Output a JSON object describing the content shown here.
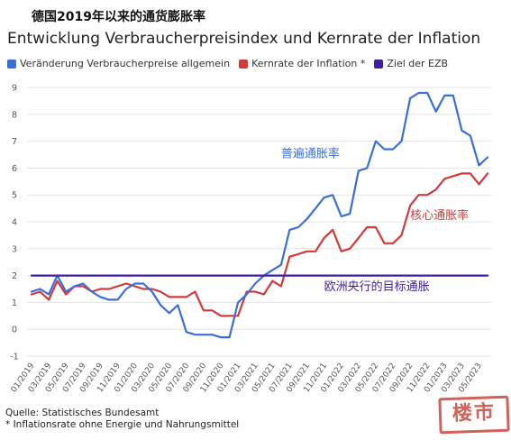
{
  "overlay_title": "德国2019年以来的通货膨胀率",
  "chart_data": {
    "type": "line",
    "title": "Entwicklung Verbraucherpreisindex und Kernrate der Inflation",
    "xlabel": "",
    "ylabel": "",
    "ylim": [
      -1,
      9
    ],
    "yticks": [
      9,
      8,
      7,
      6,
      5,
      4,
      3,
      2,
      1,
      0,
      -1
    ],
    "grid": true,
    "legend_position": "top-left",
    "x": [
      "01/2019",
      "02/2019",
      "03/2019",
      "04/2019",
      "05/2019",
      "06/2019",
      "07/2019",
      "08/2019",
      "09/2019",
      "10/2019",
      "11/2019",
      "12/2019",
      "01/2020",
      "02/2020",
      "03/2020",
      "04/2020",
      "05/2020",
      "06/2020",
      "07/2020",
      "08/2020",
      "09/2020",
      "10/2020",
      "11/2020",
      "12/2020",
      "01/2021",
      "02/2021",
      "03/2021",
      "04/2021",
      "05/2021",
      "06/2021",
      "07/2021",
      "08/2021",
      "09/2021",
      "10/2021",
      "11/2021",
      "12/2021",
      "01/2022",
      "02/2022",
      "03/2022",
      "04/2022",
      "05/2022",
      "06/2022",
      "07/2022",
      "08/2022",
      "09/2022",
      "10/2022",
      "11/2022",
      "12/2022",
      "01/2023",
      "02/2023",
      "03/2023",
      "04/2023",
      "05/2023",
      "06/2023"
    ],
    "x_tick_labels": [
      "01/2019",
      "03/2019",
      "05/2019",
      "07/2019",
      "09/2019",
      "11/2019",
      "01/2020",
      "03/2020",
      "05/2020",
      "07/2020",
      "09/2020",
      "11/2020",
      "01/2021",
      "03/2021",
      "05/2021",
      "07/2021",
      "09/2021",
      "11/2021",
      "01/2022",
      "03/2022",
      "05/2022",
      "07/2022",
      "09/2022",
      "11/2022",
      "01/2023",
      "03/2023",
      "05/2023"
    ],
    "series": [
      {
        "name": "Veränderung Verbraucherpreise allgemein",
        "color": "#3a6fd8",
        "values": [
          1.4,
          1.5,
          1.3,
          2.0,
          1.4,
          1.6,
          1.7,
          1.4,
          1.2,
          1.1,
          1.1,
          1.5,
          1.7,
          1.7,
          1.4,
          0.9,
          0.6,
          0.9,
          -0.1,
          -0.2,
          -0.2,
          -0.2,
          -0.3,
          -0.3,
          1.0,
          1.3,
          1.7,
          2.0,
          2.2,
          2.4,
          3.7,
          3.8,
          4.1,
          4.5,
          4.9,
          5.0,
          4.2,
          4.3,
          5.9,
          6.0,
          7.0,
          6.7,
          6.7,
          7.0,
          8.6,
          8.8,
          8.8,
          8.1,
          8.7,
          8.7,
          7.4,
          7.2,
          6.1,
          6.4
        ]
      },
      {
        "name": "Kernrate der Inflation *",
        "color": "#d23a3a",
        "values": [
          1.3,
          1.4,
          1.1,
          1.8,
          1.3,
          1.6,
          1.6,
          1.4,
          1.5,
          1.5,
          1.6,
          1.7,
          1.6,
          1.5,
          1.5,
          1.4,
          1.2,
          1.2,
          1.2,
          1.4,
          0.7,
          0.7,
          0.5,
          0.5,
          0.5,
          1.4,
          1.4,
          1.3,
          1.8,
          1.6,
          2.7,
          2.8,
          2.9,
          2.9,
          3.4,
          3.7,
          2.9,
          3.0,
          3.4,
          3.8,
          3.8,
          3.2,
          3.2,
          3.5,
          4.6,
          5.0,
          5.0,
          5.2,
          5.6,
          5.7,
          5.8,
          5.8,
          5.4,
          5.8
        ]
      },
      {
        "name": "Ziel der EZB",
        "color": "#3d1fa3",
        "values": [
          2,
          2,
          2,
          2,
          2,
          2,
          2,
          2,
          2,
          2,
          2,
          2,
          2,
          2,
          2,
          2,
          2,
          2,
          2,
          2,
          2,
          2,
          2,
          2,
          2,
          2,
          2,
          2,
          2,
          2,
          2,
          2,
          2,
          2,
          2,
          2,
          2,
          2,
          2,
          2,
          2,
          2,
          2,
          2,
          2,
          2,
          2,
          2,
          2,
          2,
          2,
          2,
          2,
          2
        ]
      }
    ],
    "annotations": [
      {
        "text": "普遍通胀率",
        "color": "#3a6fd8",
        "x": "06/2021",
        "y": 6.4
      },
      {
        "text": "核心通胀率",
        "color": "#d23a3a",
        "x": "09/2022",
        "y": 4.1
      },
      {
        "text": "欧洲央行的目标通胀",
        "color": "#3d1fa3",
        "x": "11/2021",
        "y": 1.45
      }
    ]
  },
  "source_line": "Quelle: Statistisches Bundesamt",
  "footnote": "* Inflationsrate ohne Energie und Nahrungsmittel",
  "stamp_text": "楼市"
}
